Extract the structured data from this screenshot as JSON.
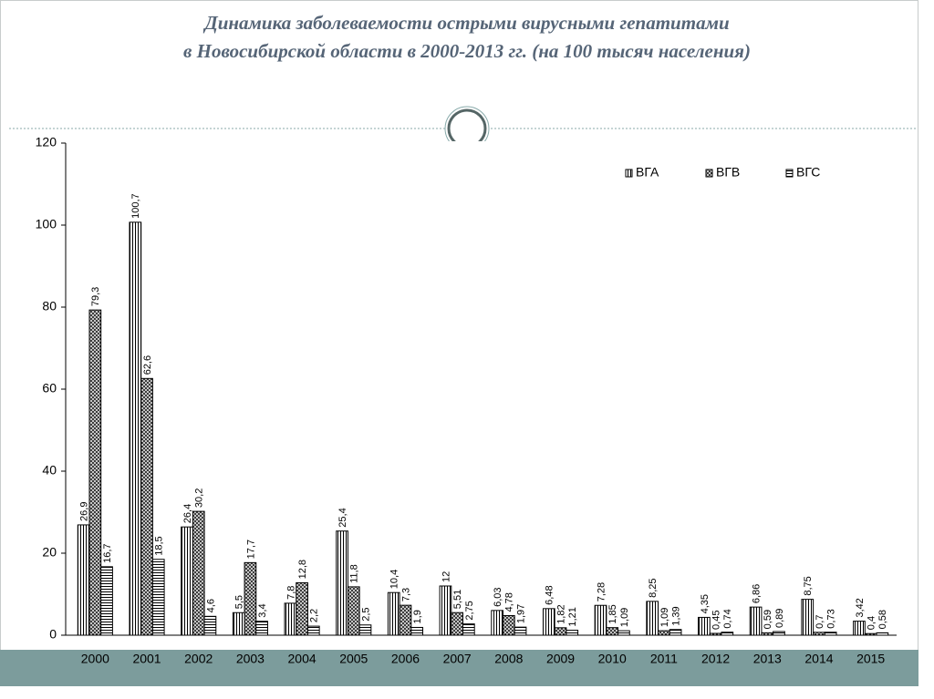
{
  "chart_data": {
    "type": "bar",
    "title": [
      "Динамика  заболеваемости острыми вирусными гепатитами",
      "в Новосибирской области в 2000-2013 гг. (на 100 тысяч населения)"
    ],
    "categories": [
      "2000",
      "2001",
      "2002",
      "2003",
      "2004",
      "2005",
      "2006",
      "2007",
      "2008",
      "2009",
      "2010",
      "2011",
      "2012",
      "2013",
      "2014",
      "2015"
    ],
    "series": [
      {
        "name": "ВГА",
        "color": "#000000",
        "pattern": "vertical",
        "values": [
          26.9,
          100.7,
          26.4,
          5.5,
          7.8,
          25.4,
          10.4,
          12,
          6.03,
          6.48,
          7.28,
          8.25,
          4.35,
          6.86,
          8.75,
          3.42
        ],
        "value_labels": [
          "26,9",
          "100,7",
          "26,4",
          "5,5",
          "7,8",
          "25,4",
          "10,4",
          "12",
          "6,03",
          "6,48",
          "7,28",
          "8,25",
          "4,35",
          "6,86",
          "8,75",
          "3,42"
        ]
      },
      {
        "name": "ВГВ",
        "color": "#000000",
        "pattern": "crosshatch",
        "values": [
          79.3,
          62.6,
          30.2,
          17.7,
          12.8,
          11.8,
          7.3,
          5.51,
          4.78,
          1.82,
          1.85,
          1.09,
          0.45,
          0.59,
          0.7,
          0.4
        ],
        "value_labels": [
          "79,3",
          "62,6",
          "30,2",
          "17,7",
          "12,8",
          "11,8",
          "7,3",
          "5,51",
          "4,78",
          "1,82",
          "1,85",
          "1,09",
          "0,45",
          "0,59",
          "0,7",
          "0,4"
        ]
      },
      {
        "name": "ВГС",
        "color": "#000000",
        "pattern": "horizontal",
        "values": [
          16.7,
          18.5,
          4.6,
          3.4,
          2.2,
          2.5,
          1.9,
          2.75,
          1.97,
          1.21,
          1.09,
          1.39,
          0.74,
          0.89,
          0.73,
          0.58
        ],
        "value_labels": [
          "16,7",
          "18,5",
          "4,6",
          "3,4",
          "2,2",
          "2,5",
          "1,9",
          "2,75",
          "1,97",
          "1,21",
          "1,09",
          "1,39",
          "0,74",
          "0,89",
          "0,73",
          "0,58"
        ]
      }
    ],
    "ylim": [
      0,
      120
    ],
    "yticks": [
      0,
      20,
      40,
      60,
      80,
      100,
      120
    ],
    "grid": false,
    "legend": "top-right"
  }
}
